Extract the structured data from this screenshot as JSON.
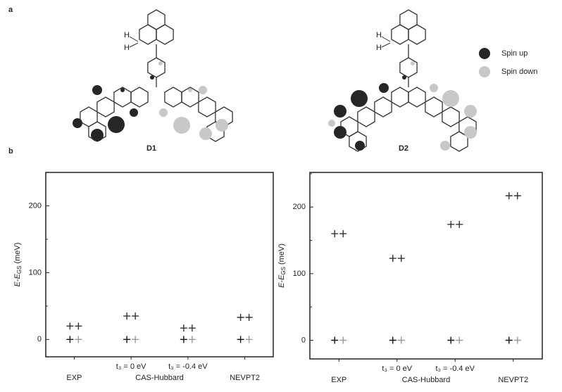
{
  "panel_a_label": "a",
  "panel_b_label": "b",
  "molecules": [
    {
      "name": "D1",
      "h_atoms": [
        "H",
        "H"
      ]
    },
    {
      "name": "D2",
      "h_atoms": [
        "H",
        "H"
      ]
    }
  ],
  "legend": [
    {
      "label": "Spin up",
      "color": "#262626"
    },
    {
      "label": "Spin down",
      "color": "#c8c8c8"
    }
  ],
  "chart_data": [
    {
      "type": "scatter",
      "categories": [
        "EXP",
        "t₃ = 0 eV",
        "t₃ = -0.4 eV",
        "NEVPT2"
      ],
      "group_label": "CAS-Hubbard",
      "y_label": {
        "main": "E-E",
        "sub": "GS",
        "unit": "(meV)"
      },
      "ylim": [
        -26,
        250
      ],
      "yticks": [
        0,
        100,
        200
      ],
      "minor_yticks": [
        50,
        150,
        250
      ],
      "series": [
        {
          "color": "#333333",
          "values": [
            20,
            35,
            17,
            33
          ]
        },
        {
          "color": "#333333",
          "values": [
            20,
            35,
            17,
            33
          ]
        },
        {
          "color": "#111111",
          "values": [
            0,
            0,
            0,
            0
          ]
        },
        {
          "color": "#999999",
          "values": [
            0,
            0,
            0,
            0
          ]
        }
      ]
    },
    {
      "type": "scatter",
      "categories": [
        "EXP",
        "t₃ = 0 eV",
        "t₃ = -0.4 eV",
        "NEVPT2"
      ],
      "group_label": "CAS-Hubbard",
      "y_label": {
        "main": "E-E",
        "sub": "GS",
        "unit": "(meV)"
      },
      "ylim": [
        -28,
        252
      ],
      "yticks": [
        0,
        100,
        200
      ],
      "minor_yticks": [
        50,
        150,
        250
      ],
      "series": [
        {
          "color": "#333333",
          "values": [
            160,
            123,
            174,
            217
          ]
        },
        {
          "color": "#333333",
          "values": [
            160,
            123,
            174,
            217
          ]
        },
        {
          "color": "#111111",
          "values": [
            0,
            0,
            0,
            0
          ]
        },
        {
          "color": "#999999",
          "values": [
            0,
            0,
            0,
            0
          ]
        }
      ]
    }
  ]
}
